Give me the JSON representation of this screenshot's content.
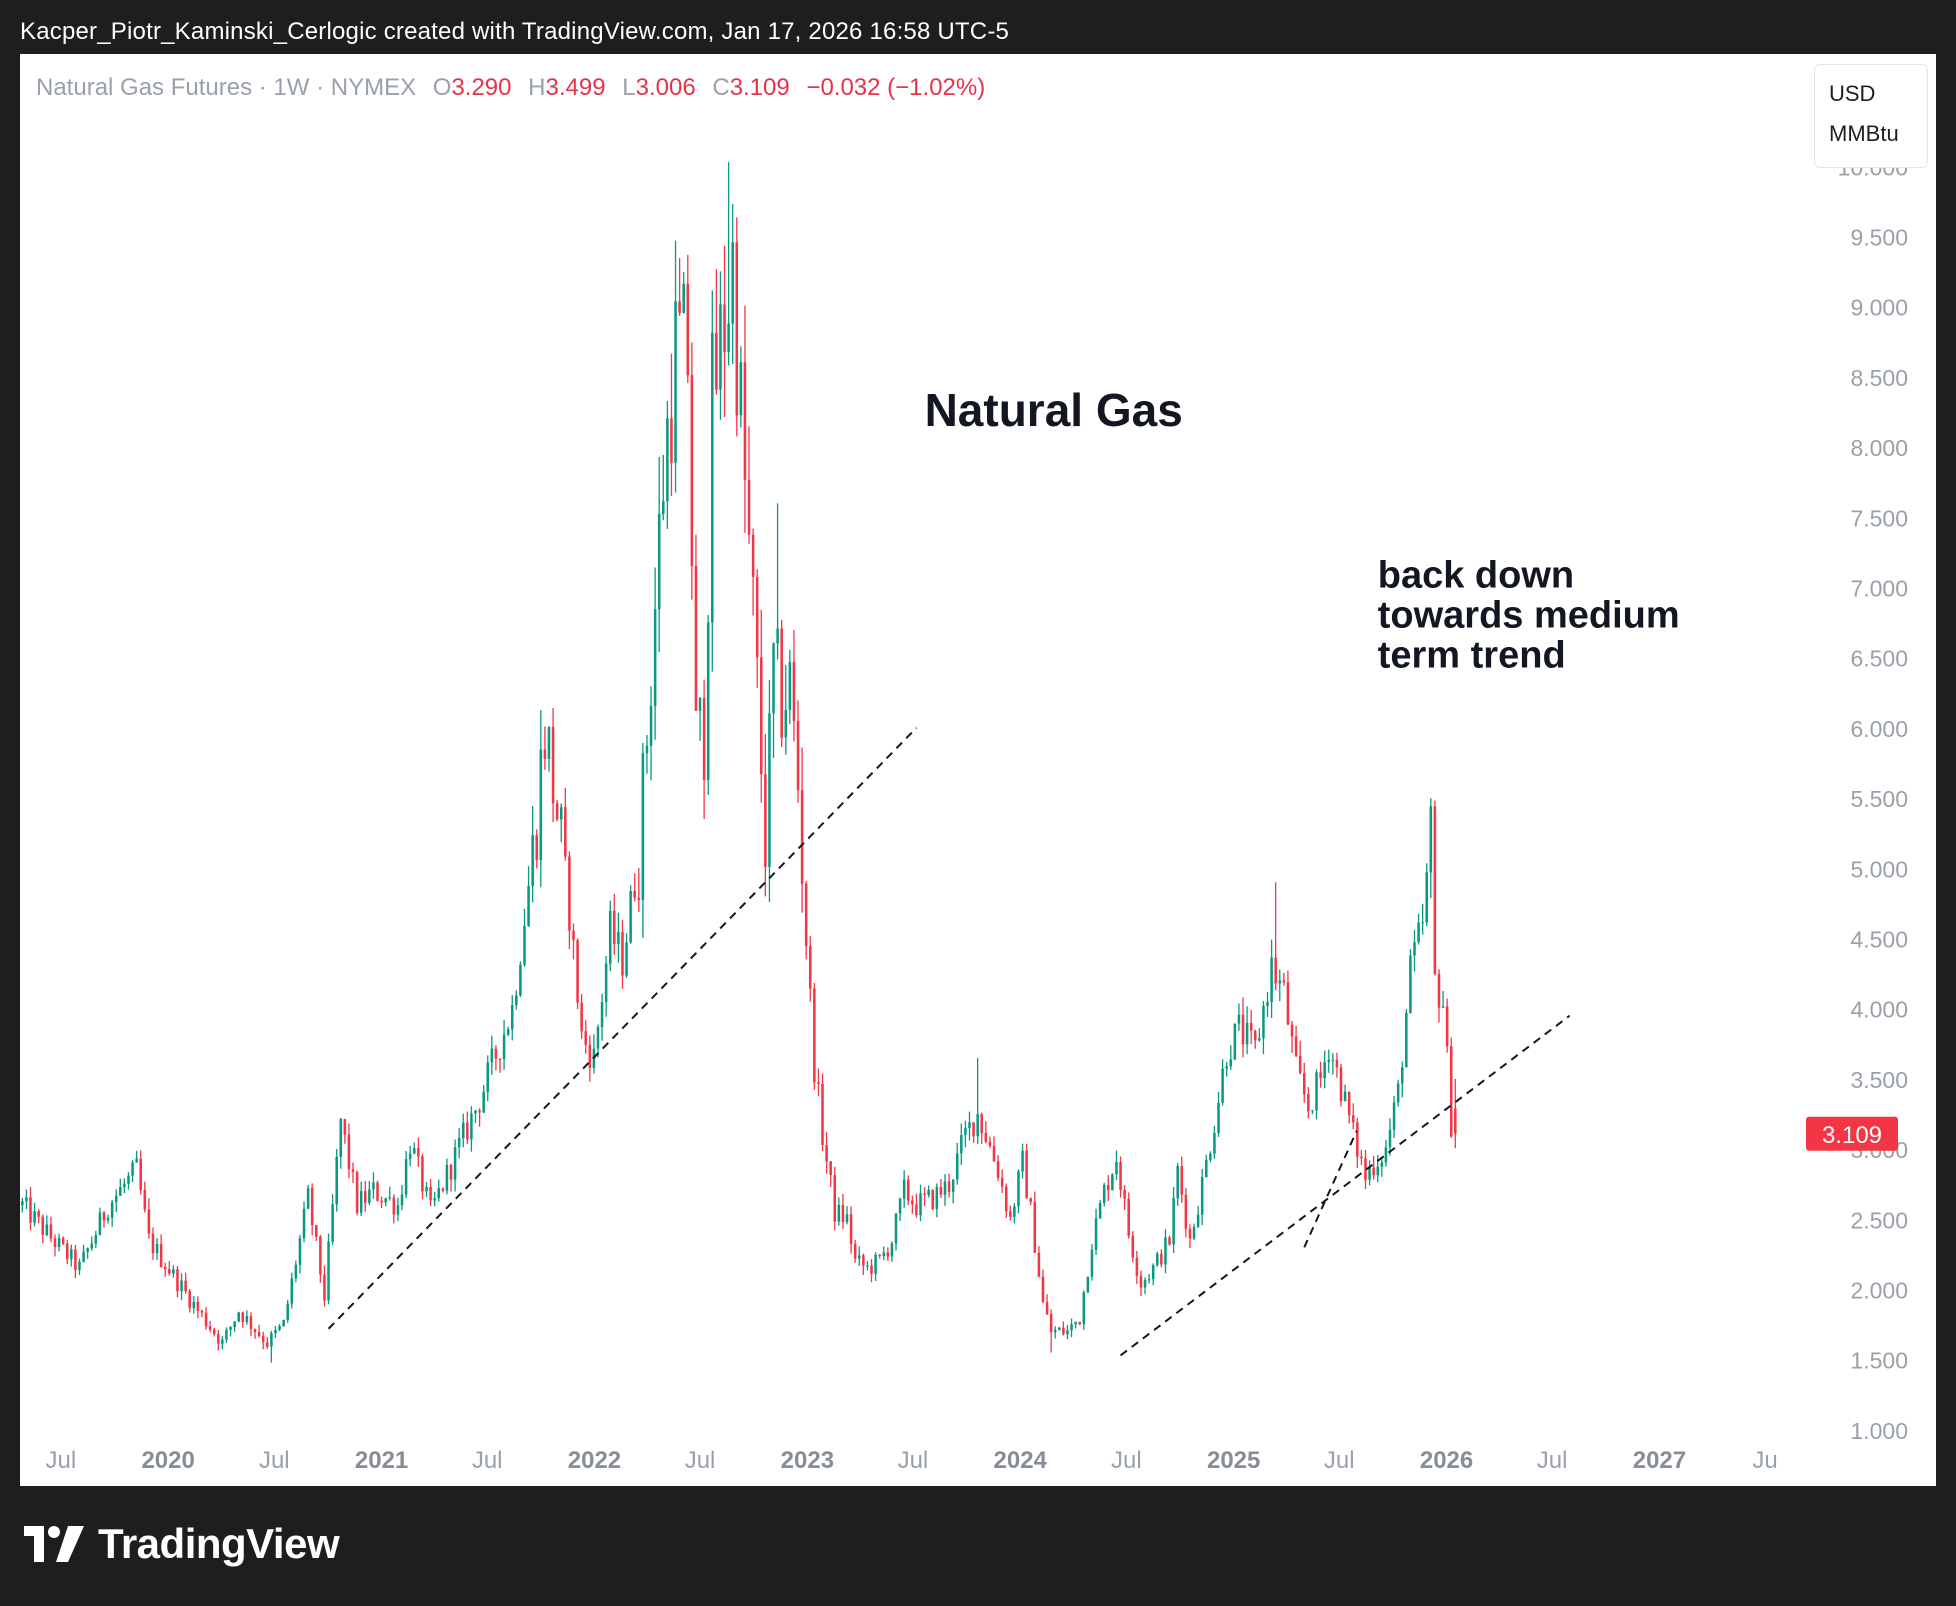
{
  "header": {
    "text": "Kacper_Piotr_Kaminski_Cerlogic created with TradingView.com, Jan 17, 2026 16:58 UTC-5"
  },
  "legend": {
    "symbol": "Natural Gas Futures · 1W · NYMEX",
    "open_label": "O",
    "open": "3.290",
    "high_label": "H",
    "high": "3.499",
    "low_label": "L",
    "low": "3.006",
    "close_label": "C",
    "close": "3.109",
    "change": "−0.032 (−1.02%)"
  },
  "currency": {
    "unit": "USD",
    "per": "MMBtu"
  },
  "footer": {
    "brand": "TradingView"
  },
  "colors": {
    "up": "#089981",
    "down": "#f23645",
    "background": "#ffffff",
    "frame": "#1e1e1f"
  },
  "chart_data": {
    "type": "candlestick",
    "timeframe": "1W",
    "y_ticks": [
      "10.000",
      "9.500",
      "9.000",
      "8.500",
      "8.000",
      "7.500",
      "7.000",
      "6.500",
      "6.000",
      "5.500",
      "5.000",
      "4.500",
      "4.000",
      "3.500",
      "3.000",
      "2.500",
      "2.000",
      "1.500",
      "1.000"
    ],
    "x_ticks": [
      {
        "label": "Jul",
        "date": "2019-07-01",
        "bold": false
      },
      {
        "label": "2020",
        "date": "2020-01-01",
        "bold": true
      },
      {
        "label": "Jul",
        "date": "2020-07-01",
        "bold": false
      },
      {
        "label": "2021",
        "date": "2021-01-01",
        "bold": true
      },
      {
        "label": "Jul",
        "date": "2021-07-01",
        "bold": false
      },
      {
        "label": "2022",
        "date": "2022-01-01",
        "bold": true
      },
      {
        "label": "Jul",
        "date": "2022-07-01",
        "bold": false
      },
      {
        "label": "2023",
        "date": "2023-01-01",
        "bold": true
      },
      {
        "label": "Jul",
        "date": "2023-07-01",
        "bold": false
      },
      {
        "label": "2024",
        "date": "2024-01-01",
        "bold": true
      },
      {
        "label": "Jul",
        "date": "2024-07-01",
        "bold": false
      },
      {
        "label": "2025",
        "date": "2025-01-01",
        "bold": true
      },
      {
        "label": "Jul",
        "date": "2025-07-01",
        "bold": false
      },
      {
        "label": "2026",
        "date": "2026-01-01",
        "bold": true
      },
      {
        "label": "Jul",
        "date": "2026-07-01",
        "bold": false
      },
      {
        "label": "2027",
        "date": "2027-01-01",
        "bold": true
      },
      {
        "label": "Ju",
        "date": "2027-07-01",
        "bold": false
      }
    ],
    "ylim": [
      0.6,
      10.8
    ],
    "xlim": [
      "2019-04-22",
      "2027-08-30"
    ],
    "last_price": {
      "label": "3.109",
      "value": 3.109
    },
    "anchors": [
      [
        "2019-04-26",
        2.6
      ],
      [
        "2019-06-07",
        2.4
      ],
      [
        "2019-08-02",
        2.15
      ],
      [
        "2019-09-20",
        2.6
      ],
      [
        "2019-11-08",
        2.85
      ],
      [
        "2019-11-29",
        2.35
      ],
      [
        "2020-01-10",
        2.1
      ],
      [
        "2020-02-21",
        1.85
      ],
      [
        "2020-04-03",
        1.62
      ],
      [
        "2020-05-01",
        1.85
      ],
      [
        "2020-06-19",
        1.62
      ],
      [
        "2020-07-17",
        1.75
      ],
      [
        "2020-08-28",
        2.65
      ],
      [
        "2020-09-25",
        1.95
      ],
      [
        "2020-10-23",
        3.2
      ],
      [
        "2020-11-20",
        2.6
      ],
      [
        "2020-12-18",
        2.7
      ],
      [
        "2021-01-29",
        2.6
      ],
      [
        "2021-02-19",
        3.05
      ],
      [
        "2021-03-26",
        2.55
      ],
      [
        "2021-05-07",
        2.95
      ],
      [
        "2021-06-18",
        3.35
      ],
      [
        "2021-08-13",
        4.0
      ],
      [
        "2021-09-17",
        5.1
      ],
      [
        "2021-10-08",
        6.0
      ],
      [
        "2021-10-29",
        5.4
      ],
      [
        "2021-11-19",
        4.7
      ],
      [
        "2021-12-10",
        3.8
      ],
      [
        "2021-12-31",
        3.65
      ],
      [
        "2022-01-28",
        4.55
      ],
      [
        "2022-02-18",
        4.35
      ],
      [
        "2022-03-18",
        5.1
      ],
      [
        "2022-04-08",
        6.4
      ],
      [
        "2022-04-29",
        7.8
      ],
      [
        "2022-05-20",
        8.7
      ],
      [
        "2022-06-10",
        8.65
      ],
      [
        "2022-06-24",
        5.9
      ],
      [
        "2022-07-08",
        6.0
      ],
      [
        "2022-07-22",
        8.3
      ],
      [
        "2022-08-19",
        9.1
      ],
      [
        "2022-08-26",
        9.3
      ],
      [
        "2022-09-16",
        7.7
      ],
      [
        "2022-09-30",
        6.8
      ],
      [
        "2022-10-21",
        5.2
      ],
      [
        "2022-11-04",
        6.4
      ],
      [
        "2022-11-18",
        6.2
      ],
      [
        "2022-12-02",
        6.3
      ],
      [
        "2022-12-16",
        5.6
      ],
      [
        "2022-12-30",
        4.5
      ],
      [
        "2023-01-13",
        3.6
      ],
      [
        "2023-01-27",
        3.1
      ],
      [
        "2023-02-17",
        2.55
      ],
      [
        "2023-03-10",
        2.5
      ],
      [
        "2023-03-24",
        2.2
      ],
      [
        "2023-04-14",
        2.15
      ],
      [
        "2023-05-05",
        2.2
      ],
      [
        "2023-05-26",
        2.35
      ],
      [
        "2023-06-16",
        2.7
      ],
      [
        "2023-07-07",
        2.6
      ],
      [
        "2023-08-04",
        2.65
      ],
      [
        "2023-09-01",
        2.75
      ],
      [
        "2023-09-29",
        3.1
      ],
      [
        "2023-10-20",
        3.25
      ],
      [
        "2023-11-03",
        3.1
      ],
      [
        "2023-11-24",
        2.85
      ],
      [
        "2023-12-15",
        2.5
      ],
      [
        "2024-01-05",
        2.9
      ],
      [
        "2024-01-19",
        2.55
      ],
      [
        "2024-02-09",
        1.9
      ],
      [
        "2024-02-23",
        1.7
      ],
      [
        "2024-03-22",
        1.7
      ],
      [
        "2024-04-12",
        1.8
      ],
      [
        "2024-05-03",
        2.35
      ],
      [
        "2024-05-24",
        2.7
      ],
      [
        "2024-06-14",
        2.95
      ],
      [
        "2024-07-05",
        2.4
      ],
      [
        "2024-07-26",
        2.05
      ],
      [
        "2024-08-16",
        2.15
      ],
      [
        "2024-09-13",
        2.35
      ],
      [
        "2024-09-27",
        2.85
      ],
      [
        "2024-10-18",
        2.35
      ],
      [
        "2024-11-08",
        2.75
      ],
      [
        "2024-11-29",
        3.2
      ],
      [
        "2024-12-20",
        3.7
      ],
      [
        "2025-01-10",
        3.85
      ],
      [
        "2025-02-07",
        3.7
      ],
      [
        "2025-03-07",
        4.3
      ],
      [
        "2025-03-28",
        4.1
      ],
      [
        "2025-04-18",
        3.55
      ],
      [
        "2025-05-09",
        3.3
      ],
      [
        "2025-05-30",
        3.5
      ],
      [
        "2025-06-13",
        3.75
      ],
      [
        "2025-07-04",
        3.45
      ],
      [
        "2025-07-25",
        3.1
      ],
      [
        "2025-08-15",
        2.8
      ],
      [
        "2025-08-29",
        2.9
      ],
      [
        "2025-09-19",
        3.0
      ],
      [
        "2025-10-10",
        3.4
      ],
      [
        "2025-10-31",
        4.25
      ],
      [
        "2025-11-21",
        4.6
      ],
      [
        "2025-12-05",
        5.2
      ],
      [
        "2025-12-12",
        4.2
      ],
      [
        "2025-12-26",
        4.05
      ],
      [
        "2026-01-09",
        3.2
      ],
      [
        "2026-01-16",
        3.109
      ]
    ],
    "forced_points": [
      {
        "date": "2022-08-19",
        "h": 10.03
      },
      {
        "date": "2022-07-08",
        "l": 5.35
      },
      {
        "date": "2022-10-21",
        "l": 4.8
      },
      {
        "date": "2022-11-11",
        "h": 7.6
      },
      {
        "date": "2023-10-20",
        "h": 3.65
      },
      {
        "date": "2024-02-23",
        "l": 1.55
      },
      {
        "date": "2025-03-14",
        "h": 4.9
      },
      {
        "date": "2025-12-05",
        "h": 5.5
      },
      {
        "date": "2026-01-16",
        "o": 3.29,
        "h": 3.499,
        "l": 3.006,
        "c": 3.109
      },
      {
        "date": "2020-06-26",
        "l": 1.48
      }
    ],
    "trendlines": [
      {
        "from": [
          "2020-10-02",
          1.72
        ],
        "to": [
          "2023-07-07",
          6.0
        ],
        "style": "dashed"
      },
      {
        "from": [
          "2024-06-21",
          1.53
        ],
        "to": [
          "2026-07-31",
          3.95
        ],
        "style": "dashed"
      },
      {
        "from": [
          "2025-05-02",
          2.3
        ],
        "to": [
          "2025-07-31",
          3.13
        ],
        "style": "dashed"
      }
    ],
    "annotations": [
      {
        "text": "Natural Gas",
        "at": [
          "2023-07-21",
          8.15
        ]
      },
      {
        "lines": [
          "back down",
          "towards medium",
          "term trend"
        ],
        "at": [
          "2025-09-05",
          7.0
        ]
      }
    ]
  }
}
